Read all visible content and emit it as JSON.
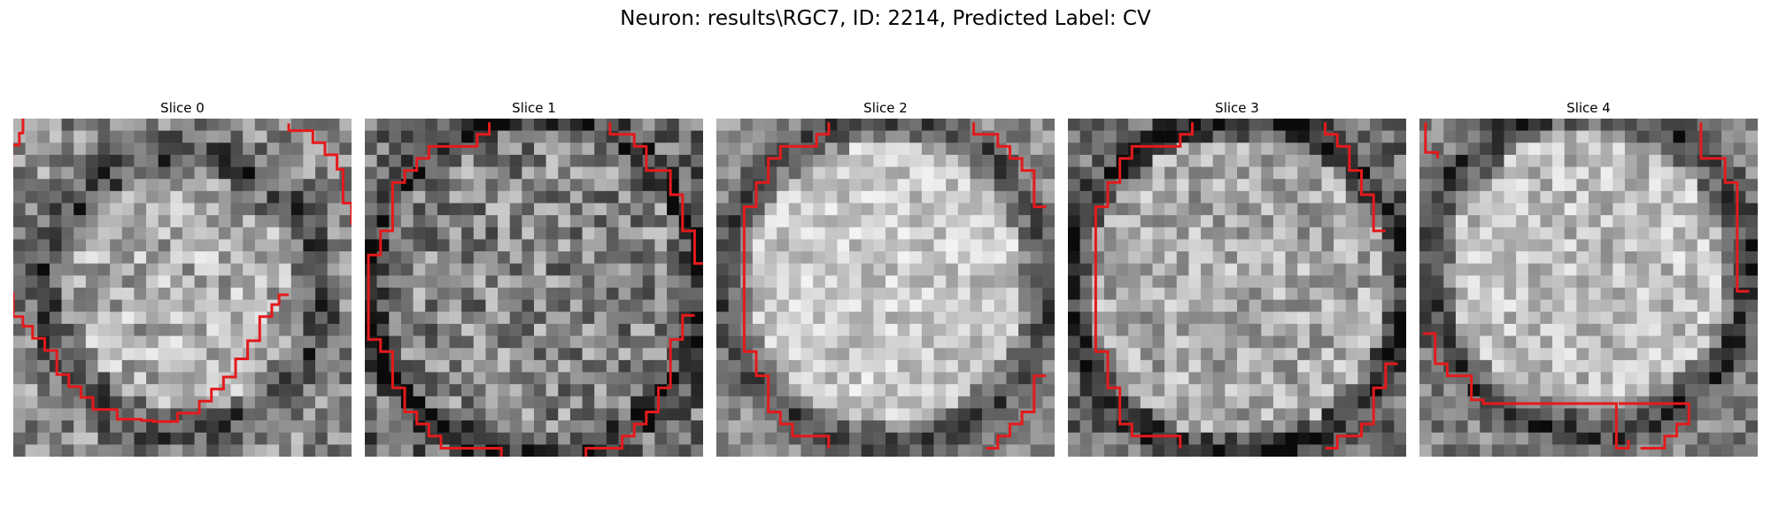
{
  "figure": {
    "title": "Neuron: results\\RGC7, ID: 2214, Predicted Label: CV"
  },
  "panels": [
    {
      "title": "Slice 0"
    },
    {
      "title": "Slice 1"
    },
    {
      "title": "Slice 2"
    },
    {
      "title": "Slice 3"
    },
    {
      "title": "Slice 4"
    }
  ],
  "style": {
    "contour_color": "#e41a1c",
    "colormap": "grayscale"
  }
}
